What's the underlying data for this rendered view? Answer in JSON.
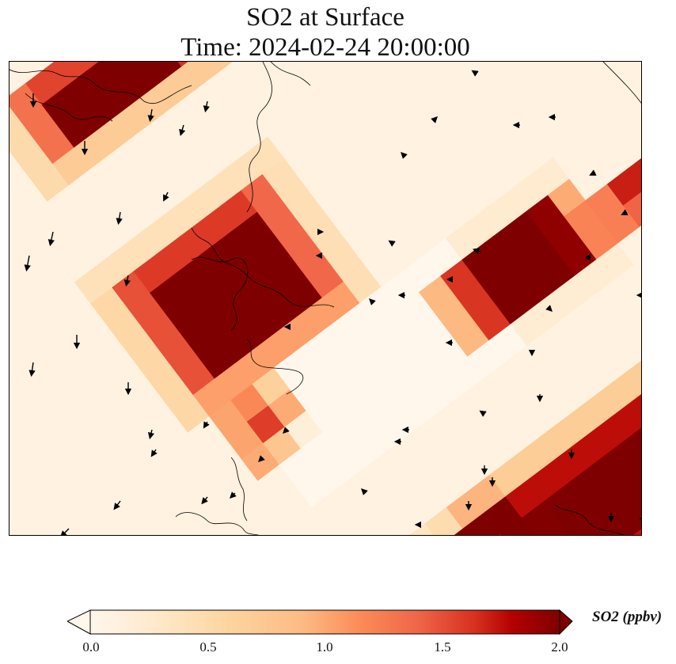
{
  "title_line1": "SO2 at Surface",
  "title_line2": "Time: 2024-02-24 20:00:00",
  "colorbar": {
    "label": "SO2 (ppbv)",
    "ticks": [
      "0.0",
      "0.5",
      "1.0",
      "1.5",
      "2.0"
    ],
    "min": 0.0,
    "max": 2.0,
    "colormap": "OrRd",
    "extend": "both"
  },
  "map": {
    "variable": "SO2",
    "features": [
      "so2-concentration-field",
      "wind-vectors",
      "coastlines"
    ]
  },
  "colors": {
    "low": "#fff5ec",
    "mid": "#f98e5a",
    "high": "#7f0000"
  }
}
